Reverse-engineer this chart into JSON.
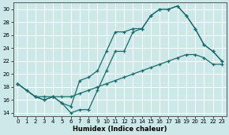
{
  "xlabel": "Humidex (Indice chaleur)",
  "bg_color": "#cce8e8",
  "grid_color": "#ffffff",
  "line_color": "#1a6b6b",
  "ylim": [
    13.5,
    31.0
  ],
  "xlim": [
    -0.5,
    23.5
  ],
  "yticks": [
    14,
    16,
    18,
    20,
    22,
    24,
    26,
    28,
    30
  ],
  "xticks": [
    0,
    1,
    2,
    3,
    4,
    5,
    6,
    7,
    8,
    9,
    10,
    11,
    12,
    13,
    14,
    15,
    16,
    17,
    18,
    19,
    20,
    21,
    22,
    23
  ],
  "line1_x": [
    0,
    1,
    2,
    3,
    4,
    5,
    6,
    7,
    8,
    9,
    10,
    11,
    12,
    13,
    14,
    15,
    16,
    17,
    18,
    19,
    20,
    21,
    22,
    23
  ],
  "line1_y": [
    18.5,
    17.5,
    16.5,
    16.0,
    16.5,
    15.5,
    14.0,
    14.5,
    14.5,
    17.5,
    20.5,
    23.5,
    23.5,
    26.5,
    27.0,
    29.0,
    30.0,
    30.0,
    30.5,
    29.0,
    27.0,
    24.5,
    23.5,
    22.0
  ],
  "line2_x": [
    0,
    2,
    3,
    4,
    5,
    6,
    7,
    8,
    9,
    10,
    11,
    12,
    13,
    14,
    15,
    16,
    17,
    18,
    19,
    20,
    21,
    22,
    23
  ],
  "line2_y": [
    18.5,
    16.5,
    16.5,
    16.5,
    16.5,
    16.5,
    17.0,
    17.5,
    18.0,
    18.5,
    19.0,
    19.5,
    20.0,
    20.5,
    21.0,
    21.5,
    22.0,
    22.5,
    23.0,
    23.0,
    22.5,
    21.5,
    21.5
  ],
  "line3_x": [
    0,
    1,
    2,
    3,
    4,
    5,
    6,
    7,
    8,
    9,
    10,
    11,
    12,
    13,
    14,
    15,
    16,
    17,
    18,
    19,
    20,
    21,
    22,
    23
  ],
  "line3_y": [
    18.5,
    17.5,
    16.5,
    16.0,
    16.5,
    15.5,
    15.0,
    19.0,
    19.5,
    20.5,
    23.5,
    26.5,
    26.5,
    27.0,
    27.0,
    29.0,
    30.0,
    30.0,
    30.5,
    29.0,
    27.0,
    24.5,
    23.5,
    22.0
  ]
}
